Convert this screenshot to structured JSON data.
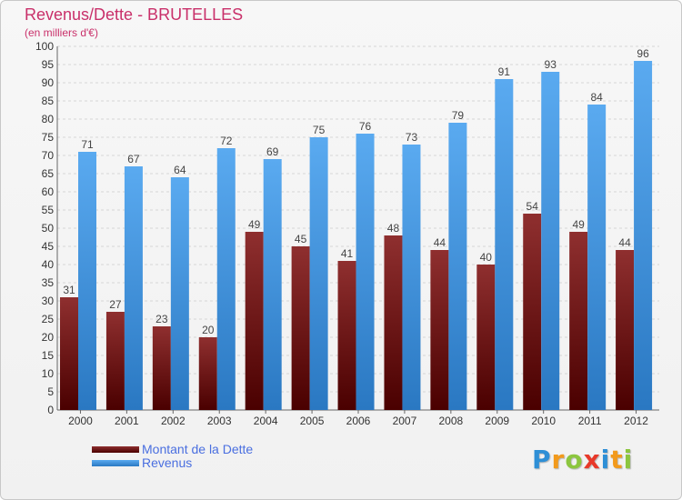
{
  "chart_data": {
    "type": "bar",
    "title": "Revenus/Dette - BRUTELLES",
    "subtitle": "(en milliers d'€)",
    "categories": [
      "2000",
      "2001",
      "2002",
      "2003",
      "2004",
      "2005",
      "2006",
      "2007",
      "2008",
      "2009",
      "2010",
      "2011",
      "2012"
    ],
    "series": [
      {
        "name": "Montant de la Dette",
        "color": "#7a1a1a",
        "values": [
          31,
          27,
          23,
          20,
          49,
          45,
          41,
          48,
          44,
          40,
          54,
          49,
          44
        ]
      },
      {
        "name": "Revenus",
        "color": "#3d8fd8",
        "values": [
          71,
          67,
          64,
          72,
          69,
          75,
          76,
          73,
          79,
          91,
          93,
          84,
          96
        ]
      }
    ],
    "ylim": [
      0,
      100
    ],
    "ytick_step": 5,
    "grid": true,
    "legend_position": "bottom-left"
  },
  "logo": {
    "letters": [
      {
        "ch": "P",
        "color": "#2e8fd6"
      },
      {
        "ch": "r",
        "color": "#f29a1c"
      },
      {
        "ch": "o",
        "color": "#8cc63f"
      },
      {
        "ch": "x",
        "color": "#e8392a"
      },
      {
        "ch": "i",
        "color": "#2e8fd6"
      },
      {
        "ch": "t",
        "color": "#f29a1c"
      },
      {
        "ch": "i",
        "color": "#8cc63f"
      }
    ]
  }
}
